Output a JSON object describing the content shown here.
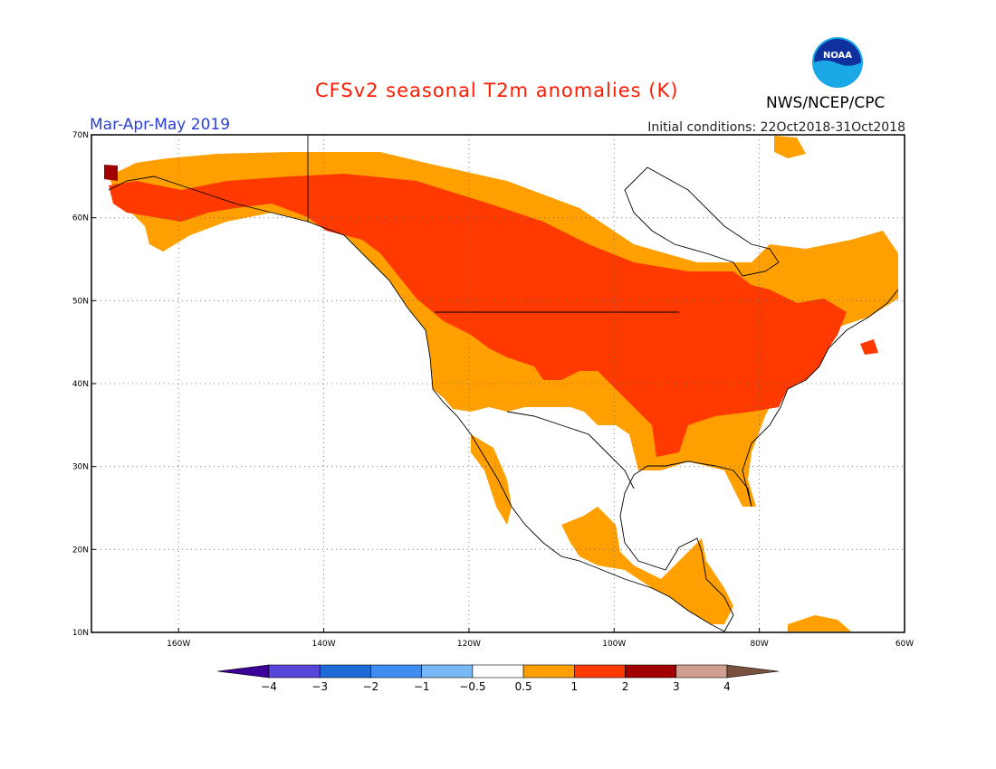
{
  "title": "CFSv2 seasonal T2m anomalies (K)",
  "period": "Mar-Apr-May 2019",
  "initial_conditions": "Initial conditions: 22Oct2018-31Oct2018",
  "agency": "NWS/NCEP/CPC",
  "logo_text": "NOAA",
  "map": {
    "lon_range": [
      -172,
      -60
    ],
    "lat_range": [
      10,
      70
    ],
    "lon_ticks": [
      {
        "value": -160,
        "label": "160W"
      },
      {
        "value": -140,
        "label": "140W"
      },
      {
        "value": -120,
        "label": "120W"
      },
      {
        "value": -100,
        "label": "100W"
      },
      {
        "value": -80,
        "label": "80W"
      },
      {
        "value": -60,
        "label": "60W"
      }
    ],
    "lat_ticks": [
      {
        "value": 70,
        "label": "70N"
      },
      {
        "value": 60,
        "label": "60N"
      },
      {
        "value": 50,
        "label": "50N"
      },
      {
        "value": 40,
        "label": "40N"
      },
      {
        "value": 30,
        "label": "30N"
      },
      {
        "value": 20,
        "label": "20N"
      },
      {
        "value": 10,
        "label": "10N"
      }
    ],
    "grid": "dotted"
  },
  "colors": {
    "anom_0_5_1": "#ffa000",
    "anom_1_2": "#ff3a00",
    "anom_2_3": "#a00000",
    "coast": "#000000"
  },
  "colorbar": {
    "colors": [
      "#3b0098",
      "#5646d9",
      "#1e6ad6",
      "#3d8ef0",
      "#78b9f5",
      "#ffffff",
      "#ffa000",
      "#ff3a00",
      "#a00000",
      "#cfa090",
      "#7a5040"
    ],
    "labels": [
      "−4",
      "−3",
      "−2",
      "−1",
      "−0.5",
      "0.5",
      "1",
      "2",
      "3",
      "4"
    ]
  }
}
